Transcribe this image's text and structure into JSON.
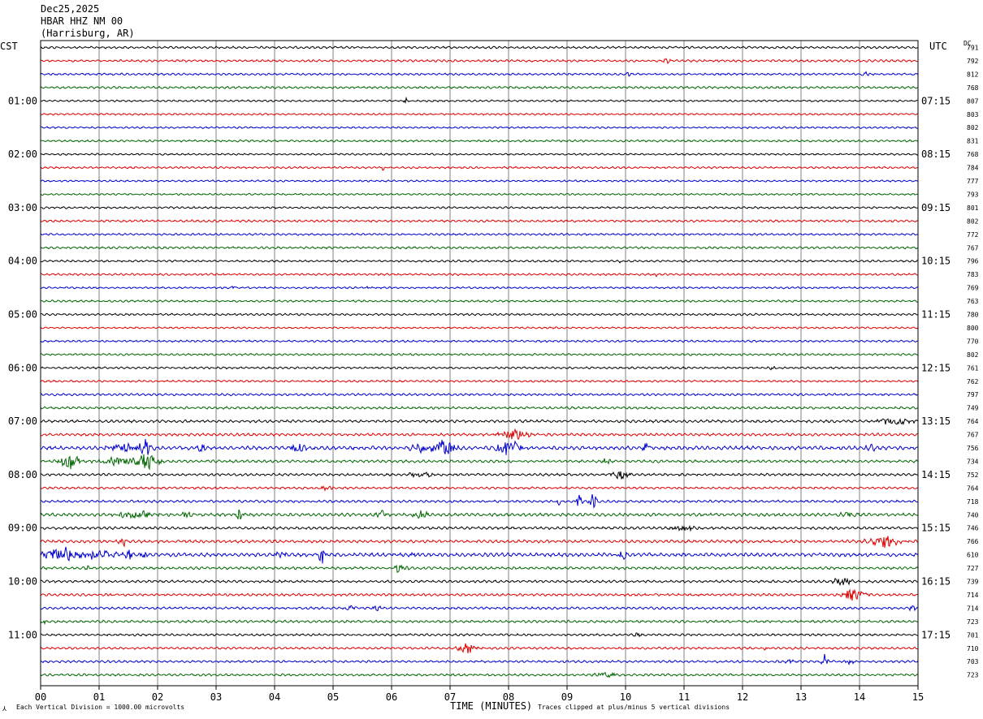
{
  "header": {
    "date": "Dec25,2025",
    "station": "HBAR HHZ NM 00",
    "location": "(Harrisburg, AR)"
  },
  "labels": {
    "left_timezone": "CST",
    "right_timezone": "UTC",
    "dc_header": "DC",
    "xlabel": "TIME (MINUTES)",
    "footer_left": "Each Vertical Division = 1000.00 microvolts",
    "footer_right": "Traces clipped at plus/minus 5 vertical divisions",
    "corner_mark": "⅄"
  },
  "colors": {
    "trace_cycle": [
      "#000000",
      "#dd0000",
      "#0000cc",
      "#006600"
    ],
    "grid": "#808080",
    "frame": "#000000"
  },
  "chart_data": {
    "type": "line",
    "title": "",
    "xlabel": "TIME (MINUTES)",
    "xlim": [
      0,
      15
    ],
    "x_ticks": [
      "00",
      "01",
      "02",
      "03",
      "04",
      "05",
      "06",
      "07",
      "08",
      "09",
      "10",
      "11",
      "12",
      "13",
      "14",
      "15"
    ],
    "grid": true,
    "row_count": 48,
    "left_hour_labels": [
      {
        "row": 4,
        "label": "01:00"
      },
      {
        "row": 8,
        "label": "02:00"
      },
      {
        "row": 12,
        "label": "03:00"
      },
      {
        "row": 16,
        "label": "04:00"
      },
      {
        "row": 20,
        "label": "05:00"
      },
      {
        "row": 24,
        "label": "06:00"
      },
      {
        "row": 28,
        "label": "07:00"
      },
      {
        "row": 32,
        "label": "08:00"
      },
      {
        "row": 36,
        "label": "09:00"
      },
      {
        "row": 40,
        "label": "10:00"
      },
      {
        "row": 44,
        "label": "11:00"
      }
    ],
    "right_hour_labels": [
      {
        "row": 4,
        "label": "07:15"
      },
      {
        "row": 8,
        "label": "08:15"
      },
      {
        "row": 12,
        "label": "09:15"
      },
      {
        "row": 16,
        "label": "10:15"
      },
      {
        "row": 20,
        "label": "11:15"
      },
      {
        "row": 24,
        "label": "12:15"
      },
      {
        "row": 28,
        "label": "13:15"
      },
      {
        "row": 32,
        "label": "14:15"
      },
      {
        "row": 36,
        "label": "15:15"
      },
      {
        "row": 40,
        "label": "16:15"
      },
      {
        "row": 44,
        "label": "17:15"
      }
    ],
    "dc_values": [
      "791",
      "792",
      "812",
      "768",
      "807",
      "803",
      "802",
      "831",
      "768",
      "784",
      "777",
      "793",
      "801",
      "802",
      "772",
      "767",
      "796",
      "783",
      "769",
      "763",
      "780",
      "800",
      "770",
      "802",
      "761",
      "762",
      "797",
      "749",
      "764",
      "767",
      "756",
      "734",
      "752",
      "764",
      "718",
      "740",
      "746",
      "766",
      "610",
      "727",
      "739",
      "714",
      "714",
      "723",
      "701",
      "710",
      "703",
      "723"
    ],
    "rows": [
      {
        "noise": 1.0,
        "events": []
      },
      {
        "noise": 1.0,
        "events": [
          {
            "t": 10.7,
            "amp": 3,
            "w": 0.05
          }
        ]
      },
      {
        "noise": 0.9,
        "events": [
          {
            "t": 10.05,
            "amp": 4,
            "w": 0.03
          },
          {
            "t": 14.1,
            "amp": 3,
            "w": 0.05
          }
        ]
      },
      {
        "noise": 1.0,
        "events": []
      },
      {
        "noise": 0.8,
        "events": [
          {
            "t": 6.25,
            "amp": 4,
            "w": 0.03
          }
        ]
      },
      {
        "noise": 0.8,
        "events": [
          {
            "t": 7.6,
            "amp": 2,
            "w": 0.03
          }
        ]
      },
      {
        "noise": 0.8,
        "events": []
      },
      {
        "noise": 0.9,
        "events": []
      },
      {
        "noise": 0.8,
        "events": []
      },
      {
        "noise": 0.9,
        "events": [
          {
            "t": 5.85,
            "amp": 3,
            "w": 0.03
          }
        ]
      },
      {
        "noise": 0.8,
        "events": []
      },
      {
        "noise": 0.8,
        "events": [
          {
            "t": 12.1,
            "amp": 2,
            "w": 0.03
          }
        ]
      },
      {
        "noise": 0.9,
        "events": []
      },
      {
        "noise": 1.0,
        "events": []
      },
      {
        "noise": 0.9,
        "events": []
      },
      {
        "noise": 1.0,
        "events": [
          {
            "t": 4.9,
            "amp": 2,
            "w": 0.05
          }
        ]
      },
      {
        "noise": 0.9,
        "events": [
          {
            "t": 9.9,
            "amp": 2,
            "w": 0.05
          }
        ]
      },
      {
        "noise": 0.9,
        "events": [
          {
            "t": 10.5,
            "amp": 2,
            "w": 0.05
          }
        ]
      },
      {
        "noise": 0.8,
        "events": [
          {
            "t": 3.3,
            "amp": 3,
            "w": 0.03
          },
          {
            "t": 5.6,
            "amp": 2,
            "w": 0.03
          }
        ]
      },
      {
        "noise": 0.9,
        "events": []
      },
      {
        "noise": 0.9,
        "events": []
      },
      {
        "noise": 0.8,
        "events": []
      },
      {
        "noise": 0.9,
        "events": []
      },
      {
        "noise": 0.9,
        "events": []
      },
      {
        "noise": 0.9,
        "events": [
          {
            "t": 12.5,
            "amp": 2,
            "w": 0.05
          }
        ]
      },
      {
        "noise": 0.9,
        "events": []
      },
      {
        "noise": 1.0,
        "events": []
      },
      {
        "noise": 1.1,
        "events": []
      },
      {
        "noise": 1.2,
        "events": [
          {
            "t": 14.6,
            "amp": 4,
            "w": 0.3
          }
        ]
      },
      {
        "noise": 1.2,
        "events": [
          {
            "t": 8.1,
            "amp": 6,
            "w": 0.25
          }
        ]
      },
      {
        "noise": 1.6,
        "events": [
          {
            "t": 1.4,
            "amp": 4,
            "w": 0.3
          },
          {
            "t": 1.8,
            "amp": 9,
            "w": 0.1
          },
          {
            "t": 2.75,
            "amp": 6,
            "w": 0.05
          },
          {
            "t": 4.4,
            "amp": 4,
            "w": 0.2
          },
          {
            "t": 6.5,
            "amp": 5,
            "w": 0.2
          },
          {
            "t": 6.9,
            "amp": 10,
            "w": 0.2
          },
          {
            "t": 8.0,
            "amp": 9,
            "w": 0.2
          },
          {
            "t": 10.35,
            "amp": 6,
            "w": 0.05
          },
          {
            "t": 14.2,
            "amp": 5,
            "w": 0.1
          }
        ]
      },
      {
        "noise": 1.2,
        "events": [
          {
            "t": 0.5,
            "amp": 10,
            "w": 0.15
          },
          {
            "t": 1.3,
            "amp": 5,
            "w": 0.3
          },
          {
            "t": 1.8,
            "amp": 10,
            "w": 0.2
          },
          {
            "t": 9.7,
            "amp": 3,
            "w": 0.1
          }
        ]
      },
      {
        "noise": 1.1,
        "events": [
          {
            "t": 6.5,
            "amp": 3,
            "w": 0.2
          },
          {
            "t": 9.9,
            "amp": 5,
            "w": 0.15
          }
        ]
      },
      {
        "noise": 1.0,
        "events": [
          {
            "t": 4.9,
            "amp": 3,
            "w": 0.1
          }
        ]
      },
      {
        "noise": 1.1,
        "events": [
          {
            "t": 8.85,
            "amp": 4,
            "w": 0.05
          },
          {
            "t": 9.2,
            "amp": 8,
            "w": 0.05
          },
          {
            "t": 9.45,
            "amp": 10,
            "w": 0.06
          }
        ]
      },
      {
        "noise": 1.4,
        "events": [
          {
            "t": 1.6,
            "amp": 4,
            "w": 0.3
          },
          {
            "t": 2.5,
            "amp": 7,
            "w": 0.05
          },
          {
            "t": 3.4,
            "amp": 10,
            "w": 0.05
          },
          {
            "t": 5.85,
            "amp": 5,
            "w": 0.1
          },
          {
            "t": 6.5,
            "amp": 5,
            "w": 0.1
          },
          {
            "t": 13.8,
            "amp": 3,
            "w": 0.15
          }
        ]
      },
      {
        "noise": 1.2,
        "events": [
          {
            "t": 11.0,
            "amp": 3,
            "w": 0.2
          }
        ]
      },
      {
        "noise": 1.3,
        "events": [
          {
            "t": 1.4,
            "amp": 6,
            "w": 0.05
          },
          {
            "t": 14.4,
            "amp": 7,
            "w": 0.25
          }
        ]
      },
      {
        "noise": 1.6,
        "events": [
          {
            "t": 0.4,
            "amp": 8,
            "w": 0.35
          },
          {
            "t": 1.0,
            "amp": 5,
            "w": 0.3
          },
          {
            "t": 1.5,
            "amp": 7,
            "w": 0.05
          },
          {
            "t": 1.75,
            "amp": 6,
            "w": 0.05
          },
          {
            "t": 4.1,
            "amp": 5,
            "w": 0.1
          },
          {
            "t": 4.8,
            "amp": 11,
            "w": 0.06
          },
          {
            "t": 6.4,
            "amp": 3,
            "w": 0.1
          },
          {
            "t": 9.95,
            "amp": 4,
            "w": 0.1
          }
        ]
      },
      {
        "noise": 1.2,
        "events": [
          {
            "t": 0.8,
            "amp": 3,
            "w": 0.05
          },
          {
            "t": 6.15,
            "amp": 5,
            "w": 0.1
          }
        ]
      },
      {
        "noise": 1.1,
        "events": [
          {
            "t": 13.7,
            "amp": 5,
            "w": 0.15
          }
        ]
      },
      {
        "noise": 1.1,
        "events": [
          {
            "t": 1.2,
            "amp": 3,
            "w": 0.03
          },
          {
            "t": 13.9,
            "amp": 7,
            "w": 0.2
          }
        ]
      },
      {
        "noise": 1.1,
        "events": [
          {
            "t": 5.3,
            "amp": 3,
            "w": 0.1
          },
          {
            "t": 5.75,
            "amp": 6,
            "w": 0.05
          },
          {
            "t": 14.9,
            "amp": 4,
            "w": 0.05
          }
        ]
      },
      {
        "noise": 1.1,
        "events": [
          {
            "t": 0.05,
            "amp": 4,
            "w": 0.05
          }
        ]
      },
      {
        "noise": 1.0,
        "events": [
          {
            "t": 10.2,
            "amp": 2,
            "w": 0.05
          }
        ]
      },
      {
        "noise": 1.0,
        "events": [
          {
            "t": 7.3,
            "amp": 6,
            "w": 0.15
          },
          {
            "t": 12.4,
            "amp": 2,
            "w": 0.05
          }
        ]
      },
      {
        "noise": 1.0,
        "events": [
          {
            "t": 12.8,
            "amp": 3,
            "w": 0.1
          },
          {
            "t": 13.4,
            "amp": 12,
            "w": 0.05
          },
          {
            "t": 13.8,
            "amp": 3,
            "w": 0.1
          }
        ]
      },
      {
        "noise": 1.0,
        "events": [
          {
            "t": 9.7,
            "amp": 3,
            "w": 0.2
          }
        ]
      }
    ]
  }
}
